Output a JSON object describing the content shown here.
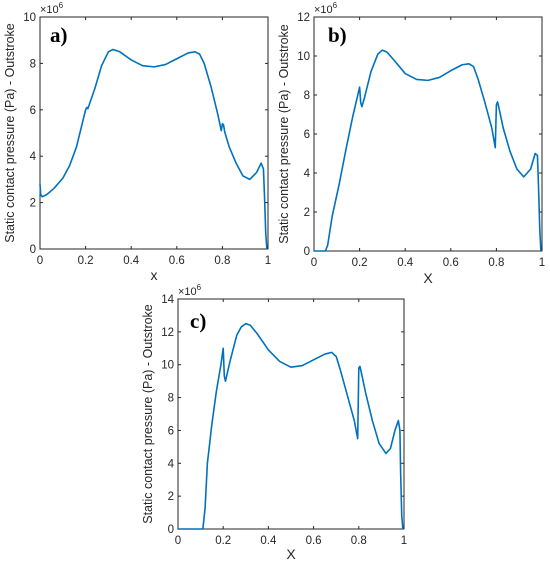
{
  "colors": {
    "series": "#0072bd",
    "axis": "#262626"
  },
  "chart_data": [
    {
      "id": "a",
      "type": "line",
      "panel_label": "a)",
      "xlabel": "x",
      "ylabel": "Static contact pressure (Pa) - Outstroke",
      "y_multiplier": "×10",
      "y_exponent": "6",
      "xlim": [
        0,
        1
      ],
      "ylim": [
        0,
        10
      ],
      "xticks": [
        "0",
        "0.2",
        "0.4",
        "0.6",
        "0.8",
        "1"
      ],
      "yticks": [
        "0",
        "2",
        "4",
        "6",
        "8",
        "10"
      ],
      "series": [
        {
          "x": [
            0,
            0.003,
            0.01,
            0.03,
            0.06,
            0.1,
            0.13,
            0.16,
            0.19,
            0.2,
            0.205,
            0.21,
            0.24,
            0.27,
            0.3,
            0.32,
            0.35,
            0.4,
            0.45,
            0.5,
            0.55,
            0.6,
            0.65,
            0.68,
            0.7,
            0.72,
            0.75,
            0.78,
            0.795,
            0.8,
            0.805,
            0.81,
            0.83,
            0.86,
            0.89,
            0.92,
            0.95,
            0.97,
            0.98,
            0.985,
            0.99,
            0.995
          ],
          "y": [
            2.8,
            2.35,
            2.25,
            2.35,
            2.6,
            3.05,
            3.6,
            4.4,
            5.6,
            6.0,
            6.1,
            6.05,
            6.9,
            7.9,
            8.5,
            8.6,
            8.5,
            8.15,
            7.9,
            7.85,
            7.95,
            8.2,
            8.45,
            8.5,
            8.4,
            8.0,
            7.0,
            5.8,
            5.1,
            5.4,
            5.35,
            5.05,
            4.4,
            3.7,
            3.15,
            3.0,
            3.3,
            3.7,
            3.45,
            2.2,
            0.7,
            0.0
          ]
        }
      ]
    },
    {
      "id": "b",
      "type": "line",
      "panel_label": "b)",
      "xlabel": "X",
      "ylabel": "Static contact pressure (Pa) - Outstroke",
      "y_multiplier": "×10",
      "y_exponent": "6",
      "xlim": [
        0,
        1
      ],
      "ylim": [
        0,
        12
      ],
      "xticks": [
        "0",
        "0.2",
        "0.4",
        "0.6",
        "0.8",
        "1"
      ],
      "yticks": [
        "0",
        "2",
        "4",
        "6",
        "8",
        "10",
        "12"
      ],
      "series": [
        {
          "x": [
            0,
            0.05,
            0.06,
            0.08,
            0.11,
            0.14,
            0.17,
            0.2,
            0.205,
            0.21,
            0.22,
            0.25,
            0.28,
            0.3,
            0.32,
            0.35,
            0.4,
            0.45,
            0.5,
            0.55,
            0.6,
            0.65,
            0.68,
            0.7,
            0.72,
            0.75,
            0.78,
            0.795,
            0.8,
            0.805,
            0.81,
            0.83,
            0.86,
            0.89,
            0.92,
            0.95,
            0.97,
            0.98,
            0.985,
            0.99,
            0.995
          ],
          "y": [
            0,
            0,
            0.3,
            1.8,
            3.4,
            5.2,
            6.9,
            8.4,
            7.6,
            7.4,
            7.8,
            9.2,
            10.1,
            10.3,
            10.2,
            9.8,
            9.1,
            8.8,
            8.75,
            8.9,
            9.25,
            9.55,
            9.6,
            9.45,
            8.8,
            7.6,
            6.3,
            5.3,
            7.5,
            7.65,
            7.4,
            6.3,
            5.1,
            4.2,
            3.8,
            4.2,
            5.0,
            4.9,
            3.2,
            1.2,
            0.0
          ]
        }
      ]
    },
    {
      "id": "c",
      "type": "line",
      "panel_label": "c)",
      "xlabel": "X",
      "ylabel": "Static contact pressure (Pa) - Outstroke",
      "y_multiplier": "×10",
      "y_exponent": "6",
      "xlim": [
        0,
        1
      ],
      "ylim": [
        0,
        14
      ],
      "xticks": [
        "0",
        "0.2",
        "0.4",
        "0.6",
        "0.8",
        "1"
      ],
      "yticks": [
        "0",
        "2",
        "4",
        "6",
        "8",
        "10",
        "12",
        "14"
      ],
      "series": [
        {
          "x": [
            0,
            0.11,
            0.12,
            0.13,
            0.15,
            0.17,
            0.19,
            0.2,
            0.205,
            0.21,
            0.23,
            0.26,
            0.28,
            0.3,
            0.32,
            0.35,
            0.4,
            0.45,
            0.5,
            0.55,
            0.6,
            0.65,
            0.68,
            0.7,
            0.72,
            0.75,
            0.78,
            0.795,
            0.8,
            0.805,
            0.81,
            0.83,
            0.86,
            0.89,
            0.92,
            0.94,
            0.96,
            0.975,
            0.982,
            0.985,
            0.99,
            0.995
          ],
          "y": [
            0,
            0,
            1.3,
            4.0,
            6.4,
            8.4,
            10.0,
            11.0,
            9.3,
            9.0,
            10.2,
            11.8,
            12.3,
            12.5,
            12.4,
            11.9,
            10.9,
            10.2,
            9.85,
            9.95,
            10.3,
            10.65,
            10.75,
            10.5,
            9.6,
            8.1,
            6.6,
            5.5,
            9.8,
            9.9,
            9.6,
            8.3,
            6.6,
            5.2,
            4.6,
            4.9,
            6.0,
            6.6,
            6.0,
            3.5,
            0.8,
            0.0
          ]
        }
      ]
    }
  ]
}
